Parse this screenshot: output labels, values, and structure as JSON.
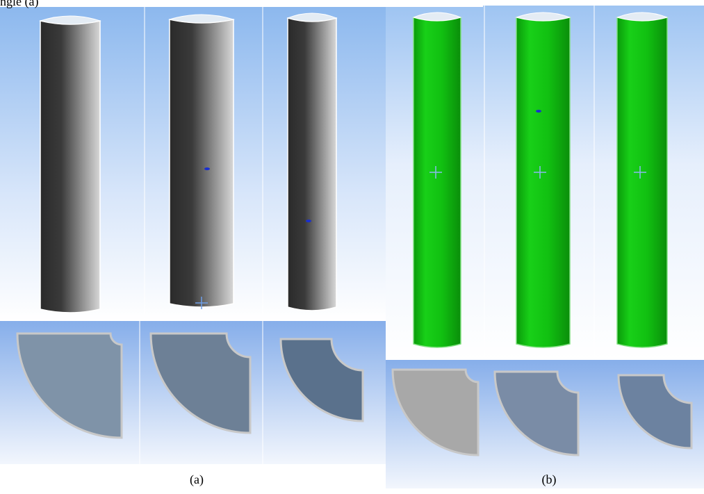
{
  "header_fragment": "ngle (a)",
  "labels": {
    "a": "(a)",
    "b": "(b)"
  }
}
